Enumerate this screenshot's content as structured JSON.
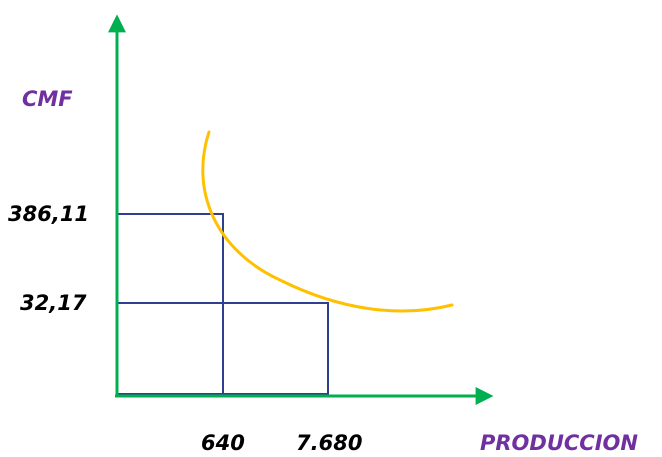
{
  "axes": {
    "y_label": "CMF",
    "x_label": "PRODUCCION",
    "axis_color": "#00b050"
  },
  "y_ticks": [
    "386,11",
    "32,17"
  ],
  "x_ticks": [
    "640",
    "7.680"
  ],
  "colors": {
    "label_purple": "#7030a0",
    "curve": "#ffc000",
    "rect": "#2f3f8f"
  }
}
